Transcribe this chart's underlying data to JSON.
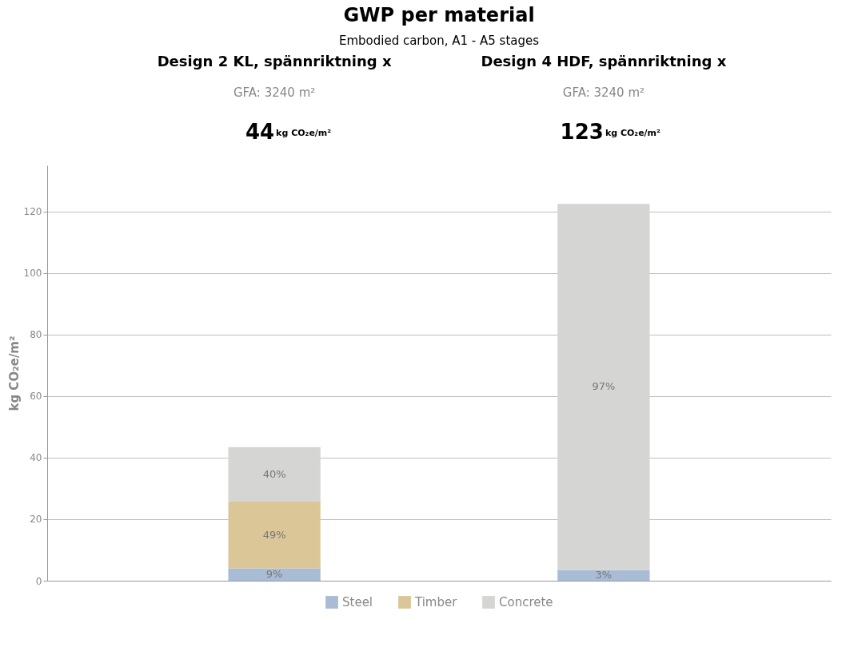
{
  "chart_data": {
    "type": "bar",
    "title": "GWP per material",
    "subtitle": "Embodied carbon, A1 - A5 stages",
    "ylabel": "kg CO₂e/m²",
    "categories": [
      "Design 2 KL, spännriktning x",
      "Design 4 HDF, spännriktning x"
    ],
    "series": [
      {
        "name": "Steel",
        "color": "#a9bcd5",
        "values": [
          4.0,
          3.5
        ]
      },
      {
        "name": "Timber",
        "color": "#dbc698",
        "values": [
          21.7,
          null
        ]
      },
      {
        "name": "Concrete",
        "color": "#d5d6d4",
        "values": [
          17.7,
          119.0
        ]
      }
    ],
    "stacked": true,
    "annotations": [
      "GFA: 3240 m²",
      "GFA: 3240 m²",
      "44",
      "123",
      "kg CO₂e/m²",
      "kg CO₂e/m²",
      "9%",
      "3%",
      "49%",
      "40%",
      "97%"
    ],
    "ylim": [
      0,
      135
    ],
    "yticks": [
      0,
      20,
      40,
      60,
      80,
      100,
      120
    ],
    "grid": "y",
    "legend": "bottom",
    "tick_labels": "y"
  }
}
